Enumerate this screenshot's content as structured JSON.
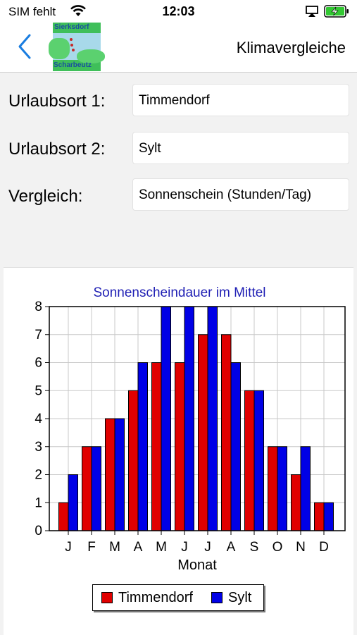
{
  "status": {
    "carrier": "SIM fehlt",
    "time": "12:03"
  },
  "nav": {
    "title": "Klimavergleiche",
    "logo_top": "Sierksdorf",
    "logo_bottom": "Scharbeutz"
  },
  "form": {
    "location1_label": "Urlaubsort 1:",
    "location1_value": "Timmendorf",
    "location2_label": "Urlaubsort 2:",
    "location2_value": "Sylt",
    "compare_label": "Vergleich:",
    "compare_value": "Sonnenschein (Stunden/Tag)"
  },
  "colors": {
    "series1": "#e00000",
    "series2": "#0000e6",
    "title": "#1f1fb4",
    "accent": "#1a7de0"
  },
  "chart_data": {
    "type": "bar",
    "title": "Sonnenscheindauer im Mittel",
    "xlabel": "Monat",
    "ylabel": "",
    "ylim": [
      0,
      8
    ],
    "yticks": [
      "0",
      "1",
      "2",
      "3",
      "4",
      "5",
      "6",
      "7",
      "8"
    ],
    "categories": [
      "J",
      "F",
      "M",
      "A",
      "M",
      "J",
      "J",
      "A",
      "S",
      "O",
      "N",
      "D"
    ],
    "series": [
      {
        "name": "Timmendorf",
        "values": [
          1,
          3,
          4,
          5,
          6,
          6,
          7,
          7,
          5,
          3,
          2,
          1
        ]
      },
      {
        "name": "Sylt",
        "values": [
          2,
          3,
          4,
          6,
          8,
          8,
          8,
          6,
          5,
          3,
          3,
          1
        ]
      }
    ],
    "grid": true,
    "legend": "bottom-center"
  }
}
